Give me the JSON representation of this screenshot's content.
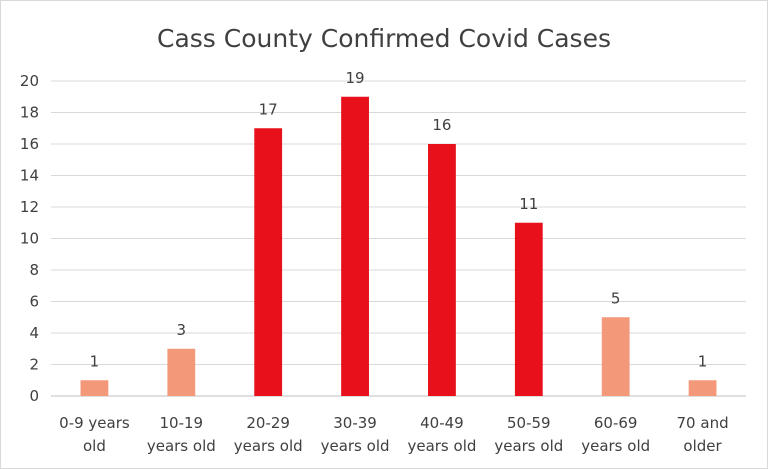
{
  "chart_data": {
    "type": "bar",
    "title": "Cass County Confirmed Covid Cases",
    "categories": [
      [
        "0-9 years",
        "old"
      ],
      [
        "10-19",
        "years old"
      ],
      [
        "20-29",
        "years old"
      ],
      [
        "30-39",
        "years old"
      ],
      [
        "40-49",
        "years old"
      ],
      [
        "50-59",
        "years old"
      ],
      [
        "60-69",
        "years old"
      ],
      [
        "70 and",
        "older"
      ]
    ],
    "values": [
      1,
      3,
      17,
      19,
      16,
      11,
      5,
      1
    ],
    "bar_colors": [
      "#f4987a",
      "#f4987a",
      "#e8101a",
      "#e8101a",
      "#e8101a",
      "#e8101a",
      "#f4987a",
      "#f4987a"
    ],
    "ylim": [
      0,
      20
    ],
    "yticks": [
      0,
      2,
      4,
      6,
      8,
      10,
      12,
      14,
      16,
      18,
      20
    ],
    "grid": true,
    "data_labels": true,
    "legend": "none"
  }
}
